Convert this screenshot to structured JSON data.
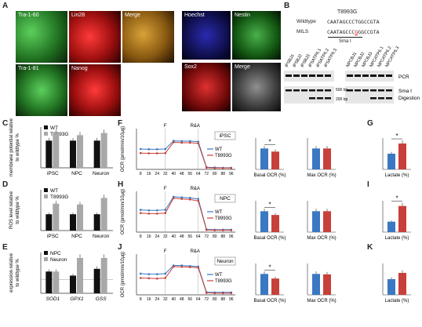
{
  "panel_letters": [
    "A",
    "B",
    "C",
    "D",
    "E",
    "F",
    "G",
    "H",
    "I",
    "J",
    "K"
  ],
  "panelA": {
    "images": [
      {
        "label": "Tra-1-60",
        "color": "#2ea12e"
      },
      {
        "label": "Lin28",
        "color": "#d41c1c"
      },
      {
        "label": "Merge",
        "color": "#8a6a1a"
      },
      {
        "label": "Hoechst",
        "color": "#1a1a8c"
      },
      {
        "label": "Nestin",
        "color": "#2f8f2f"
      },
      {
        "label": "Tra-1-81",
        "color": "#3aa63a"
      },
      {
        "label": "Nanog",
        "color": "#cc1b1b"
      },
      {
        "label": "Sox2",
        "color": "#b51717"
      },
      {
        "label": "Merge",
        "color": "#6d6d6d"
      }
    ]
  },
  "panelB": {
    "mutation": "T8993G",
    "wildtype_label": "Wildtype",
    "wildtype_seq": "CAATAGCCCTGGCCGTA",
    "mils_label": "MILS",
    "mils_seq_pre": "CAATAGCCC",
    "mils_seq_mut": "G",
    "mils_seq_post": "GGCCGTA",
    "enzyme": "Sma I",
    "ipsc_lanes": [
      "iPSBJ1",
      "iPSBJ2",
      "iPSBJ3",
      "iPSATP6.1",
      "iPSATP6.2",
      "iPSATP6.3"
    ],
    "npc_lanes": [
      "NPCBJ1",
      "NPCBJ2",
      "NPCBJ3",
      "NPCATP6.1",
      "NPCATP6.2",
      "NPCATP6.3"
    ],
    "pcr_label": "PCR",
    "ladder_500": "500 bp",
    "ladder_200": "200 bp",
    "digest_label_1": "Sma I",
    "digest_label_2": "Digestion"
  },
  "legend": {
    "wt": "WT",
    "mut": "T8993G",
    "npc": "NPC",
    "neuron": "Neuron"
  },
  "colors": {
    "wt_bar": "#111111",
    "mut_bar": "#a8a8a8",
    "wt_line": "#3a78c2",
    "mut_line": "#c8403a"
  },
  "panelC": {
    "ylabel": "membrane potential relative to wildtype  %"
  },
  "panelD": {
    "ylabel": "ROS level relative to wildtype  %"
  },
  "panelE": {
    "ylabel": "expression relative to wildtype  %"
  },
  "ocr": {
    "ylabel": "OCR (pmol/min/10μg)",
    "xlabel": "Time (min)",
    "f_label": "F",
    "ra_label": "R&A",
    "basal_label": "Basal OCR (%)",
    "max_label": "Max OCR (%)",
    "lactate_label": "Lactate (%)",
    "star": "*",
    "panel_tags": [
      "iPSC",
      "NPC",
      "Neuron"
    ]
  },
  "chart_data": [
    {
      "panel": "C",
      "type": "bar",
      "categories": [
        "iPSC",
        "NPC",
        "Neuron"
      ],
      "ylabel": "membrane potential relative to wildtype  %",
      "ylim": [
        0,
        150
      ],
      "series": [
        {
          "name": "WT",
          "values": [
            100,
            100,
            100
          ]
        },
        {
          "name": "T8993G",
          "values": [
            128,
            120,
            128
          ]
        }
      ]
    },
    {
      "panel": "D",
      "type": "bar",
      "categories": [
        "iPSC",
        "NPC",
        "Neuron"
      ],
      "ylabel": "ROS level relative to wildtype  %",
      "ylim": [
        0,
        250
      ],
      "series": [
        {
          "name": "WT",
          "values": [
            100,
            100,
            100
          ]
        },
        {
          "name": "T8993G",
          "values": [
            165,
            160,
            200
          ]
        }
      ]
    },
    {
      "panel": "E",
      "type": "bar",
      "categories": [
        "SOD1",
        "GPX1",
        "GSS"
      ],
      "ylabel": "expression relative to wildtype  %",
      "ylim": [
        0,
        300
      ],
      "series": [
        {
          "name": "NPC",
          "values": [
            160,
            130,
            180
          ]
        },
        {
          "name": "Neuron",
          "values": [
            160,
            260,
            260
          ]
        }
      ]
    },
    {
      "panel": "F",
      "type": "line",
      "title": "iPSC",
      "x": [
        8,
        16,
        24,
        32,
        40,
        48,
        56,
        64,
        72,
        80,
        88,
        96
      ],
      "ylabel": "OCR (pmol/min/10μg)",
      "xlabel": "Time (min)",
      "ylim": [
        0,
        150
      ],
      "series": [
        {
          "name": "WT",
          "values": [
            75,
            74,
            74,
            75,
            105,
            104,
            104,
            102,
            8,
            7,
            6,
            6
          ]
        },
        {
          "name": "T8993G",
          "values": [
            60,
            59,
            59,
            60,
            100,
            98,
            98,
            96,
            6,
            5,
            5,
            5
          ]
        }
      ]
    },
    {
      "panel": "F-basal",
      "type": "bar",
      "categories": [
        "WT",
        "T8993G"
      ],
      "xlabel": "Basal OCR (%)",
      "ylim": [
        0,
        150
      ],
      "values": [
        100,
        85
      ]
    },
    {
      "panel": "F-max",
      "type": "bar",
      "categories": [
        "WT",
        "T8993G"
      ],
      "xlabel": "Max OCR (%)",
      "ylim": [
        0,
        150
      ],
      "values": [
        100,
        100
      ]
    },
    {
      "panel": "G",
      "type": "bar",
      "categories": [
        "WT",
        "T8993G"
      ],
      "xlabel": "Lactate (%)",
      "ylim": [
        0,
        200
      ],
      "values": [
        100,
        165
      ]
    },
    {
      "panel": "H",
      "type": "line",
      "title": "NPC",
      "x": [
        8,
        16,
        24,
        32,
        40,
        48,
        56,
        64,
        72,
        80,
        88,
        96
      ],
      "ylabel": "OCR (pmol/min/10μg)",
      "xlabel": "Time (min)",
      "ylim": [
        0,
        150
      ],
      "series": [
        {
          "name": "WT",
          "values": [
            82,
            80,
            80,
            82,
            130,
            128,
            126,
            122,
            10,
            9,
            9,
            9
          ]
        },
        {
          "name": "T8993G",
          "values": [
            70,
            68,
            68,
            70,
            125,
            122,
            120,
            115,
            8,
            7,
            7,
            7
          ]
        }
      ]
    },
    {
      "panel": "H-basal",
      "type": "bar",
      "categories": [
        "WT",
        "T8993G"
      ],
      "xlabel": "Basal OCR (%)",
      "ylim": [
        0,
        150
      ],
      "values": [
        100,
        82
      ]
    },
    {
      "panel": "H-max",
      "type": "bar",
      "categories": [
        "WT",
        "T8993G"
      ],
      "xlabel": "Max OCR (%)",
      "ylim": [
        0,
        150
      ],
      "values": [
        100,
        100
      ]
    },
    {
      "panel": "I",
      "type": "bar",
      "categories": [
        "WT",
        "T8993G"
      ],
      "xlabel": "Lactate (%)",
      "ylim": [
        0,
        300
      ],
      "values": [
        100,
        250
      ]
    },
    {
      "panel": "J",
      "type": "line",
      "title": "Neuron",
      "x": [
        8,
        16,
        24,
        32,
        40,
        48,
        56,
        64,
        72,
        80,
        88,
        96
      ],
      "ylabel": "OCR (pmol/min/10μg)",
      "xlabel": "Time (min)",
      "ylim": [
        0,
        150
      ],
      "series": [
        {
          "name": "WT",
          "values": [
            78,
            76,
            76,
            78,
            108,
            108,
            106,
            104,
            10,
            9,
            9,
            9
          ]
        },
        {
          "name": "T8993G",
          "values": [
            62,
            61,
            60,
            62,
            104,
            103,
            102,
            100,
            7,
            6,
            6,
            6
          ]
        }
      ]
    },
    {
      "panel": "J-basal",
      "type": "bar",
      "categories": [
        "WT",
        "T8993G"
      ],
      "xlabel": "Basal OCR (%)",
      "ylim": [
        0,
        150
      ],
      "values": [
        100,
        78
      ]
    },
    {
      "panel": "J-max",
      "type": "bar",
      "categories": [
        "WT",
        "T8993G"
      ],
      "xlabel": "Max OCR (%)",
      "ylim": [
        0,
        150
      ],
      "values": [
        100,
        98
      ]
    },
    {
      "panel": "K",
      "type": "bar",
      "categories": [
        "WT",
        "T8993G"
      ],
      "xlabel": "Lactate (%)",
      "ylim": [
        0,
        200
      ],
      "values": [
        100,
        140
      ]
    }
  ]
}
